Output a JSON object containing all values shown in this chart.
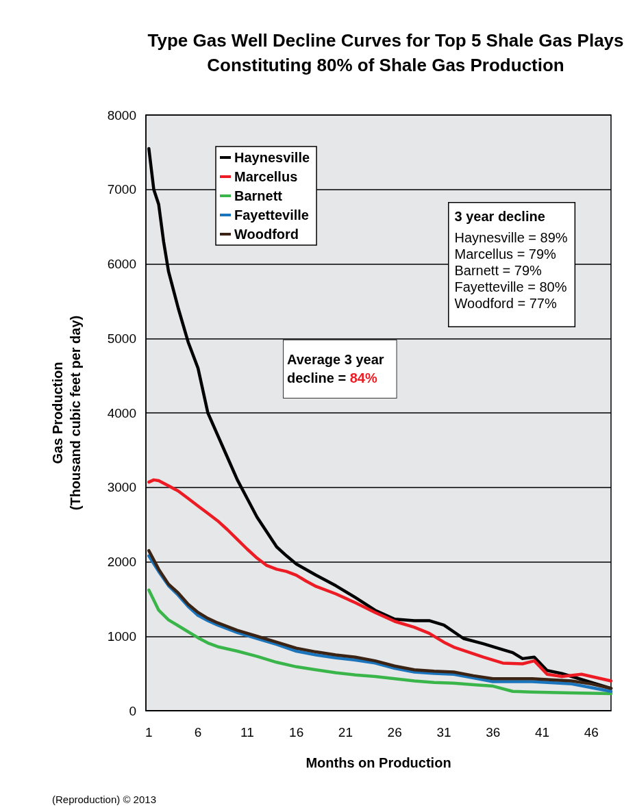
{
  "chart_data": {
    "type": "line",
    "title": "Type Gas Well Decline Curves for Top 5 Shale Gas Plays\nConstituting 80% of Shale Gas Production",
    "xlabel": "Months on Production",
    "ylabel": "Gas Production\n(Thousand cubic feet per day)",
    "xlim": [
      0.7,
      48
    ],
    "xticks": [
      1,
      6,
      11,
      16,
      21,
      26,
      31,
      36,
      41,
      46
    ],
    "ylim": [
      0,
      8000
    ],
    "yticks": [
      0,
      1000,
      2000,
      3000,
      4000,
      5000,
      6000,
      7000,
      8000
    ],
    "grid": "y",
    "legend": "top left",
    "marker": "none",
    "line_style": "solid",
    "series": [
      {
        "name": "Haynesville",
        "color": "#000000",
        "x": [
          1,
          1.5,
          2,
          2.5,
          3,
          4,
          5,
          6,
          7,
          8,
          9,
          10,
          11,
          12,
          13,
          14,
          15,
          16,
          18,
          20,
          22,
          24,
          26,
          28,
          29.5,
          31,
          33,
          35,
          37,
          38,
          39,
          40.2,
          41.5,
          43,
          44,
          46,
          48
        ],
        "values": [
          7550,
          7000,
          6800,
          6300,
          5900,
          5400,
          4950,
          4600,
          4000,
          3700,
          3400,
          3100,
          2850,
          2600,
          2400,
          2200,
          2080,
          1970,
          1820,
          1680,
          1520,
          1350,
          1230,
          1210,
          1210,
          1150,
          970,
          900,
          820,
          780,
          700,
          720,
          540,
          500,
          460,
          380,
          300
        ]
      },
      {
        "name": "Marcellus",
        "color": "#ed1c24",
        "x": [
          1,
          1.5,
          2,
          3,
          4,
          5,
          6,
          7,
          8,
          9,
          10,
          11,
          12,
          13,
          14,
          15,
          16,
          17,
          18,
          20,
          22,
          24,
          26,
          28,
          29.5,
          31,
          32,
          35,
          37,
          39,
          40.2,
          41.5,
          43,
          45,
          47,
          48
        ],
        "values": [
          3070,
          3100,
          3090,
          3020,
          2950,
          2850,
          2750,
          2650,
          2550,
          2430,
          2300,
          2170,
          2050,
          1950,
          1900,
          1870,
          1820,
          1740,
          1670,
          1570,
          1450,
          1320,
          1200,
          1120,
          1040,
          920,
          855,
          720,
          640,
          630,
          670,
          490,
          460,
          490,
          430,
          400
        ]
      },
      {
        "name": "Barnett",
        "color": "#39b54a",
        "x": [
          1,
          2,
          3,
          4,
          5,
          6,
          7,
          8,
          10,
          12,
          14,
          16,
          18,
          20,
          22,
          24,
          26,
          28,
          30,
          32,
          34,
          36,
          38,
          40,
          44,
          48
        ],
        "values": [
          1620,
          1350,
          1220,
          1140,
          1060,
          980,
          910,
          860,
          800,
          730,
          650,
          590,
          550,
          510,
          480,
          460,
          430,
          400,
          380,
          370,
          350,
          330,
          260,
          250,
          240,
          230
        ]
      },
      {
        "name": "Fayetteville",
        "color": "#1b75bc",
        "x": [
          1,
          2,
          3,
          4,
          5,
          6,
          7,
          8,
          10,
          12,
          14,
          16,
          18,
          20,
          22,
          24,
          26,
          28,
          30,
          32,
          34,
          36,
          40,
          44,
          46,
          48
        ],
        "values": [
          2080,
          1870,
          1680,
          1550,
          1400,
          1280,
          1210,
          1150,
          1050,
          970,
          890,
          800,
          750,
          710,
          680,
          640,
          570,
          520,
          500,
          490,
          440,
          390,
          390,
          360,
          310,
          260
        ]
      },
      {
        "name": "Woodford",
        "color": "#3c2415",
        "x": [
          1,
          2,
          3,
          4,
          5,
          6,
          7,
          8,
          10,
          12,
          14,
          16,
          18,
          20,
          22,
          24,
          26,
          28,
          30,
          32,
          34,
          36,
          40,
          44,
          46,
          48
        ],
        "values": [
          2150,
          1900,
          1700,
          1580,
          1430,
          1320,
          1240,
          1180,
          1080,
          1000,
          920,
          840,
          790,
          750,
          720,
          670,
          600,
          550,
          530,
          520,
          470,
          430,
          430,
          400,
          360,
          300
        ]
      }
    ],
    "annotations": [
      "Average 3 year\ndecline = 84%",
      "3 year decline",
      "Haynesville = 89%",
      "Marcellus = 79%",
      "Barnett = 79%",
      "Fayetteville = 80%",
      "Woodford = 77%",
      "(Reproduction) © 2013"
    ]
  }
}
